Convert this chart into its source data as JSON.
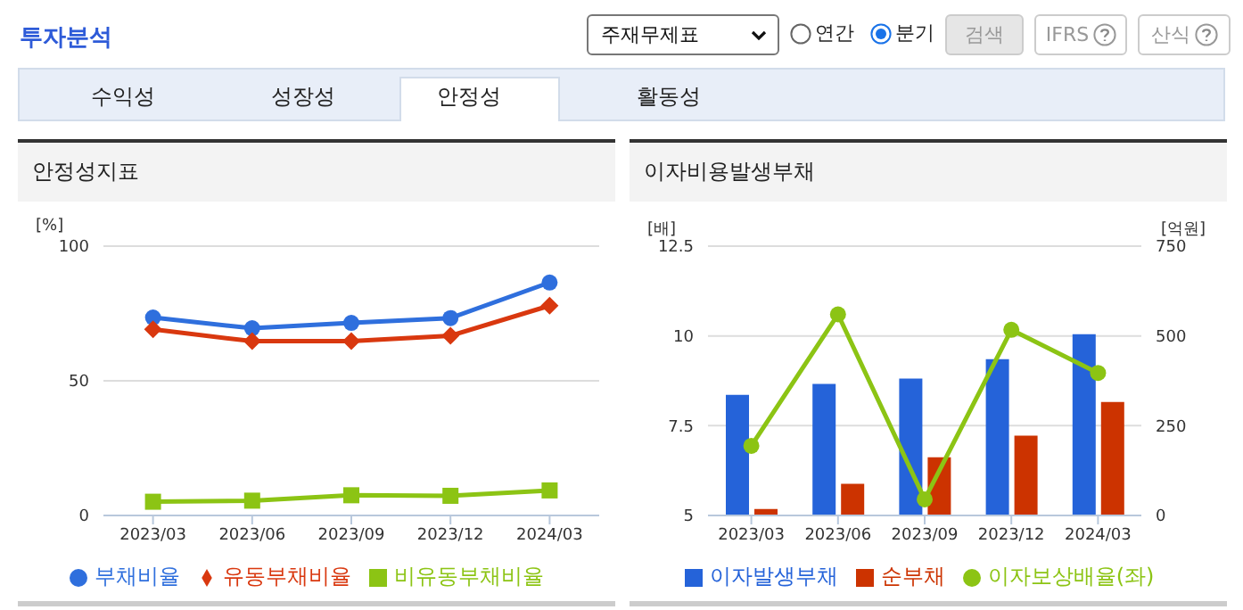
{
  "chart_data": [
    {
      "type": "line",
      "title": "안정성지표",
      "ylabel": "[%]",
      "categories": [
        "2023/03",
        "2023/06",
        "2023/09",
        "2023/12",
        "2024/03"
      ],
      "ylim": [
        0,
        100
      ],
      "yticks": [
        0,
        50,
        100
      ],
      "grid": "y",
      "legend": "bottom",
      "annotations": [
        "투자분석",
        "주재무제표",
        "연간",
        "분기",
        "검색",
        "IFRS",
        "산식",
        "수익성",
        "성장성",
        "안정성",
        "활동성"
      ],
      "series": [
        {
          "name": "부채비율",
          "color": "#2f6fdd",
          "marker": "circle",
          "values": [
            73.5,
            69.5,
            71.5,
            73.3,
            86.5
          ]
        },
        {
          "name": "유동부채비율",
          "color": "#d9380f",
          "marker": "diamond",
          "values": [
            69.1,
            64.7,
            64.7,
            66.7,
            77.9
          ]
        },
        {
          "name": "비유동부채비율",
          "color": "#8cc414",
          "marker": "square",
          "values": [
            5.1,
            5.5,
            7.5,
            7.3,
            9.3
          ]
        }
      ]
    },
    {
      "type": "bar",
      "title": "이자비용발생부채",
      "ylabel": "[배]",
      "y2label": "[억원]",
      "categories": [
        "2023/03",
        "2023/06",
        "2023/09",
        "2023/12",
        "2024/03"
      ],
      "ylim": [
        5,
        12.5
      ],
      "yticks": [
        5,
        7.5,
        10,
        12.5
      ],
      "y2lim": [
        0,
        750
      ],
      "y2ticks": [
        0,
        250,
        500,
        750
      ],
      "grid": "y",
      "legend": "bottom",
      "series": [
        {
          "name": "이자발생부채",
          "color": "#2563d9",
          "axis": "y2",
          "values": [
            336,
            366,
            381,
            435,
            505
          ]
        },
        {
          "name": "순부채",
          "color": "#cc3300",
          "axis": "y2",
          "values": [
            18,
            88,
            162,
            222,
            316
          ]
        },
        {
          "name": "이자보상배율(좌)",
          "type": "line",
          "color": "#8cc414",
          "marker": "circle",
          "values": [
            6.94,
            10.6,
            5.45,
            10.17,
            8.97
          ]
        }
      ]
    }
  ]
}
